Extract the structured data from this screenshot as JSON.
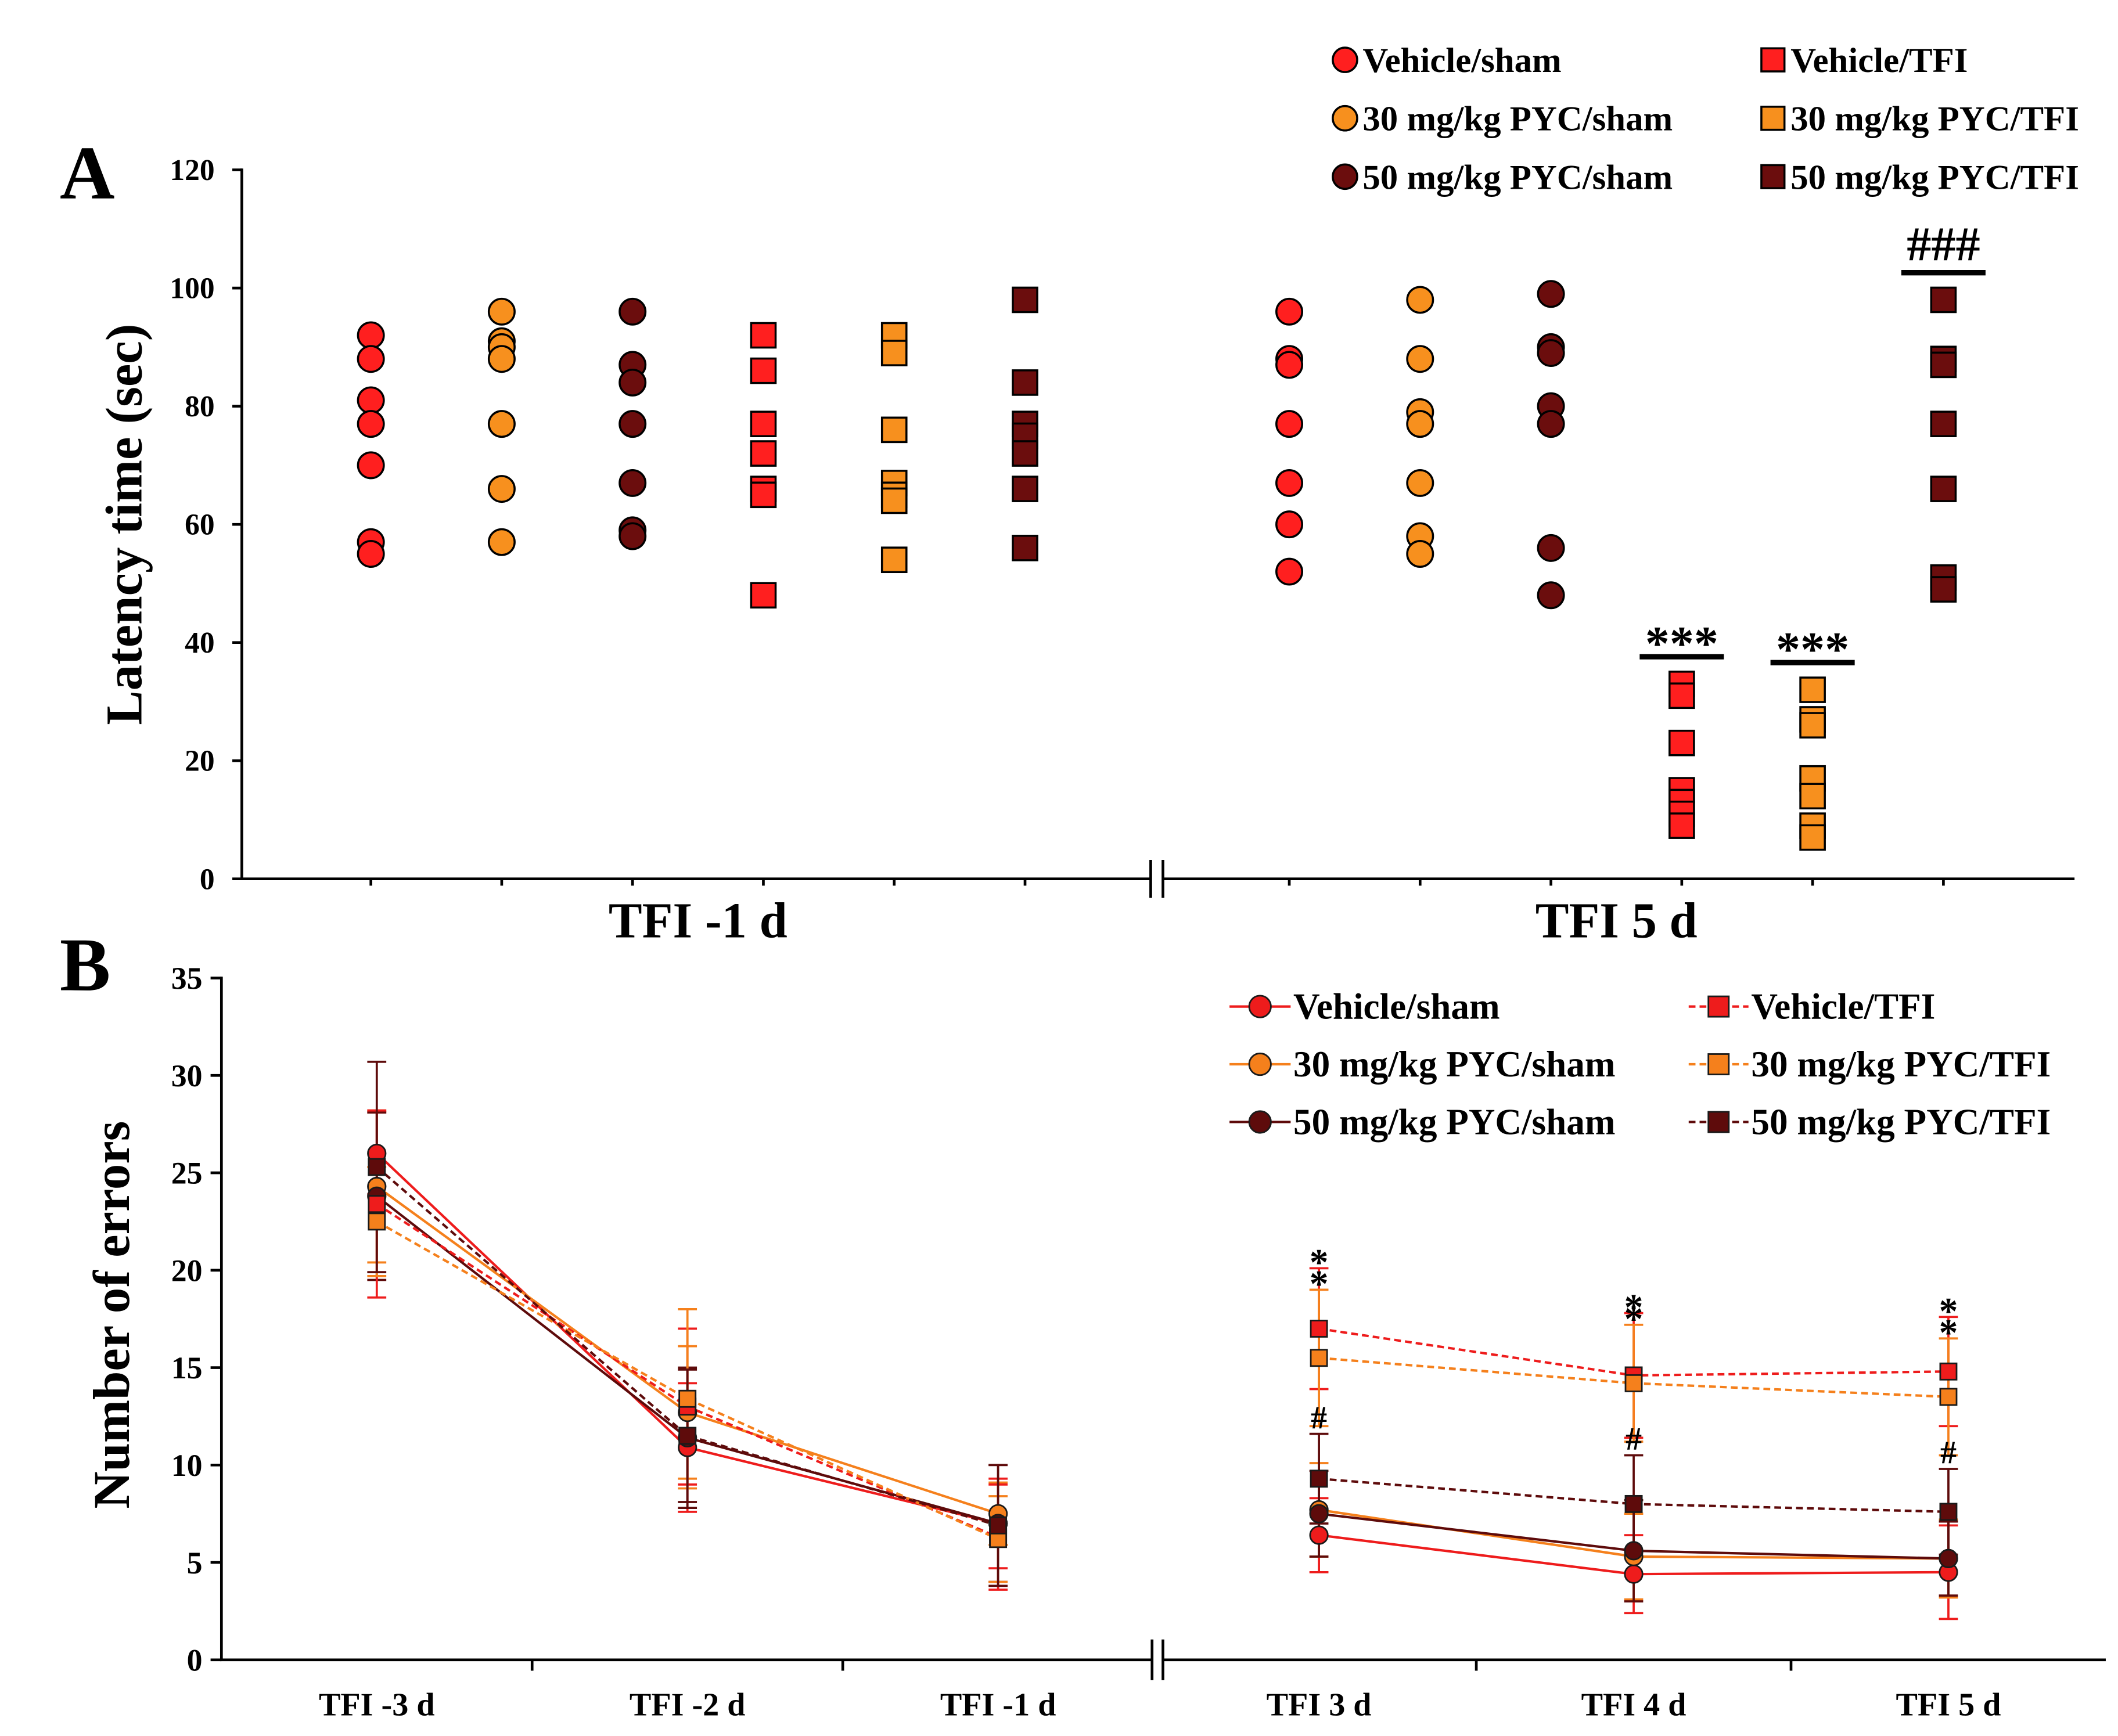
{
  "chart_data": [
    {
      "panel": "A",
      "type": "scatter",
      "ylabel": "Latency time (sec)",
      "ylim": [
        0,
        120
      ],
      "yticks": [
        0,
        20,
        40,
        60,
        80,
        100,
        120
      ],
      "timepoints": [
        "TFI -1 d",
        "TFI 5 d"
      ],
      "axis_break": true,
      "grid": false,
      "legend": {
        "position": "top-right"
      },
      "series": [
        {
          "name": "Vehicle/sham",
          "marker": "circle",
          "color": "#FF1F1F",
          "points": [
            [
              92,
              88,
              81,
              77,
              70,
              57,
              55
            ],
            [
              96,
              88,
              87,
              77,
              67,
              60,
              52
            ]
          ]
        },
        {
          "name": "30 mg/kg PYC/sham",
          "marker": "circle",
          "color": "#F7901E",
          "points": [
            [
              96,
              91,
              90,
              88,
              77,
              66,
              57
            ],
            [
              98,
              88,
              79,
              77,
              67,
              58,
              55
            ]
          ]
        },
        {
          "name": "50 mg/kg PYC/sham",
          "marker": "circle",
          "color": "#6B0D0D",
          "points": [
            [
              96,
              87,
              84,
              77,
              67,
              59,
              58
            ],
            [
              99,
              90,
              89,
              80,
              77,
              56,
              48
            ]
          ]
        },
        {
          "name": "Vehicle/TFI",
          "marker": "square",
          "color": "#FF1F1F",
          "points": [
            [
              92,
              86,
              77,
              72,
              66,
              65,
              48
            ],
            [
              33,
              31,
              23,
              15,
              13,
              11,
              9
            ]
          ]
        },
        {
          "name": "30 mg/kg PYC/TFI",
          "marker": "square",
          "color": "#F7901E",
          "points": [
            [
              92,
              89,
              76,
              67,
              65,
              64,
              54
            ],
            [
              32,
              27,
              26,
              17,
              14,
              9,
              7
            ]
          ]
        },
        {
          "name": "50 mg/kg PYC/TFI",
          "marker": "square",
          "color": "#6B0D0D",
          "points": [
            [
              98,
              84,
              77,
              75,
              72,
              66,
              56
            ],
            [
              98,
              88,
              87,
              77,
              66,
              51,
              49
            ]
          ]
        }
      ],
      "annotations": [
        {
          "series_index": 3,
          "timepoint_index": 1,
          "text": "***"
        },
        {
          "series_index": 4,
          "timepoint_index": 1,
          "text": "***"
        },
        {
          "series_index": 5,
          "timepoint_index": 1,
          "text": "###"
        }
      ]
    },
    {
      "panel": "B",
      "type": "line",
      "ylabel": "Number of errors",
      "ylim": [
        0,
        35
      ],
      "yticks": [
        0,
        5,
        10,
        15,
        20,
        25,
        30,
        35
      ],
      "categories": [
        "TFI -3 d",
        "TFI -2 d",
        "TFI -1 d",
        "TFI 3 d",
        "TFI 4 d",
        "TFI 5 d"
      ],
      "axis_break_after_index": 2,
      "grid": false,
      "legend": {
        "position": "top-right"
      },
      "series": [
        {
          "name": "Vehicle/sham",
          "marker": "circle",
          "dashed": false,
          "color": "#EE1C1C",
          "values": [
            26.0,
            10.9,
            7.0,
            6.4,
            4.4,
            4.5
          ],
          "errors": [
            2.1,
            3.3,
            2.3,
            1.9,
            2.0,
            2.4
          ]
        },
        {
          "name": "30 mg/kg PYC/sham",
          "marker": "circle",
          "dashed": false,
          "color": "#F5801C",
          "values": [
            24.3,
            12.7,
            7.5,
            7.7,
            5.3,
            5.2
          ],
          "errors": [
            3.9,
            3.4,
            1.6,
            2.4,
            2.2,
            2.0
          ]
        },
        {
          "name": "50 mg/kg PYC/sham",
          "marker": "circle",
          "dashed": false,
          "color": "#5E0B0B",
          "values": [
            23.8,
            11.4,
            7.0,
            7.5,
            5.6,
            5.2
          ],
          "errors": [
            4.3,
            3.6,
            3.0,
            2.2,
            2.6,
            1.9
          ]
        },
        {
          "name": "Vehicle/TFI",
          "marker": "square",
          "dashed": true,
          "color": "#EE1C1C",
          "values": [
            23.4,
            13.0,
            6.3,
            17.0,
            14.6,
            14.8
          ],
          "errors": [
            4.8,
            4.0,
            2.7,
            3.1,
            3.2,
            2.8
          ]
        },
        {
          "name": "30 mg/kg PYC/TFI",
          "marker": "square",
          "dashed": true,
          "color": "#F5801C",
          "values": [
            22.5,
            13.4,
            6.2,
            15.5,
            14.2,
            13.5
          ],
          "errors": [
            2.8,
            4.6,
            2.2,
            3.5,
            3.0,
            3.0
          ]
        },
        {
          "name": "50 mg/kg PYC/TFI",
          "marker": "square",
          "dashed": true,
          "color": "#5E0B0B",
          "values": [
            25.3,
            11.5,
            6.9,
            9.3,
            8.0,
            7.6
          ],
          "errors": [
            5.4,
            3.4,
            3.1,
            2.3,
            2.5,
            2.2
          ]
        }
      ],
      "annotations": [
        {
          "series_index": 3,
          "timepoint_index": 3,
          "text": "*"
        },
        {
          "series_index": 4,
          "timepoint_index": 3,
          "text": "*"
        },
        {
          "series_index": 5,
          "timepoint_index": 3,
          "text": "#"
        },
        {
          "series_index": 3,
          "timepoint_index": 4,
          "text": "*"
        },
        {
          "series_index": 4,
          "timepoint_index": 4,
          "text": "*"
        },
        {
          "series_index": 5,
          "timepoint_index": 4,
          "text": "#"
        },
        {
          "series_index": 3,
          "timepoint_index": 5,
          "text": "*"
        },
        {
          "series_index": 4,
          "timepoint_index": 5,
          "text": "*"
        },
        {
          "series_index": 5,
          "timepoint_index": 5,
          "text": "#"
        }
      ]
    }
  ]
}
